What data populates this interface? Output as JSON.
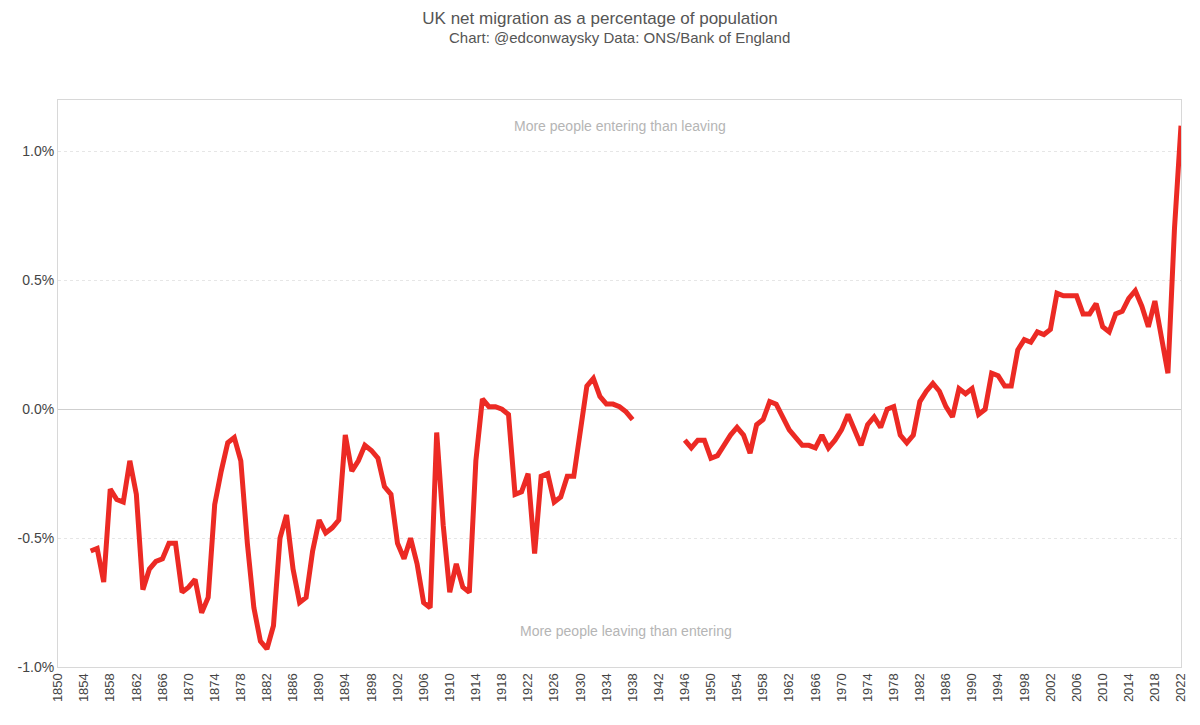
{
  "chart_data": {
    "type": "line",
    "title": "UK net migration as a percentage of population",
    "subtitle": "Chart: @edconwaysky Data: ONS/Bank of England",
    "color": "#ec2a24",
    "grid": true,
    "annotations": [
      {
        "text": "More people entering than leaving",
        "x": 1936,
        "y": 1.1
      },
      {
        "text": "More people leaving than entering",
        "x": 1937,
        "y": -0.86
      }
    ],
    "xlim": [
      1850,
      2022
    ],
    "xticks": [
      1850,
      1854,
      1858,
      1862,
      1866,
      1870,
      1874,
      1878,
      1882,
      1886,
      1890,
      1894,
      1898,
      1902,
      1906,
      1910,
      1914,
      1918,
      1922,
      1926,
      1930,
      1934,
      1938,
      1942,
      1946,
      1950,
      1954,
      1958,
      1962,
      1966,
      1970,
      1974,
      1978,
      1982,
      1986,
      1990,
      1994,
      1998,
      2002,
      2006,
      2010,
      2014,
      2018,
      2022
    ],
    "ylim": [
      -1.0,
      1.2
    ],
    "yticks": [
      {
        "value": -1.0,
        "label": "-1.0%"
      },
      {
        "value": -0.5,
        "label": "-0.5%"
      },
      {
        "value": 0.0,
        "label": "0.0%"
      },
      {
        "value": 0.5,
        "label": "0.5%"
      },
      {
        "value": 1.0,
        "label": "1.0%"
      }
    ],
    "x": [
      1855,
      1856,
      1857,
      1858,
      1859,
      1860,
      1861,
      1862,
      1863,
      1864,
      1865,
      1866,
      1867,
      1868,
      1869,
      1870,
      1871,
      1872,
      1873,
      1874,
      1875,
      1876,
      1877,
      1878,
      1879,
      1880,
      1881,
      1882,
      1883,
      1884,
      1885,
      1886,
      1887,
      1888,
      1889,
      1890,
      1891,
      1892,
      1893,
      1894,
      1895,
      1896,
      1897,
      1898,
      1899,
      1900,
      1901,
      1902,
      1903,
      1904,
      1905,
      1906,
      1907,
      1908,
      1909,
      1910,
      1911,
      1912,
      1913,
      1914,
      1915,
      1916,
      1917,
      1918,
      1919,
      1920,
      1921,
      1922,
      1923,
      1924,
      1925,
      1926,
      1927,
      1928,
      1929,
      1930,
      1931,
      1932,
      1933,
      1934,
      1935,
      1936,
      1937,
      1938,
      1939,
      1940,
      1941,
      1942,
      1943,
      1944,
      1945,
      1946,
      1947,
      1948,
      1949,
      1950,
      1951,
      1952,
      1953,
      1954,
      1955,
      1956,
      1957,
      1958,
      1959,
      1960,
      1961,
      1962,
      1963,
      1964,
      1965,
      1966,
      1967,
      1968,
      1969,
      1970,
      1971,
      1972,
      1973,
      1974,
      1975,
      1976,
      1977,
      1978,
      1979,
      1980,
      1981,
      1982,
      1983,
      1984,
      1985,
      1986,
      1987,
      1988,
      1989,
      1990,
      1991,
      1992,
      1993,
      1994,
      1995,
      1996,
      1997,
      1998,
      1999,
      2000,
      2001,
      2002,
      2003,
      2004,
      2005,
      2006,
      2007,
      2008,
      2009,
      2010,
      2011,
      2012,
      2013,
      2014,
      2015,
      2016,
      2017,
      2018,
      2019,
      2020,
      2021,
      2022
    ],
    "values": [
      -0.55,
      -0.54,
      -0.67,
      -0.31,
      -0.35,
      -0.36,
      -0.2,
      -0.33,
      -0.7,
      -0.62,
      -0.59,
      -0.58,
      -0.52,
      -0.52,
      -0.71,
      -0.69,
      -0.66,
      -0.79,
      -0.73,
      -0.37,
      -0.24,
      -0.13,
      -0.11,
      -0.2,
      -0.52,
      -0.77,
      -0.9,
      -0.93,
      -0.84,
      -0.5,
      -0.41,
      -0.62,
      -0.75,
      -0.73,
      -0.55,
      -0.43,
      -0.48,
      -0.46,
      -0.43,
      -0.1,
      -0.24,
      -0.2,
      -0.14,
      -0.16,
      -0.19,
      -0.3,
      -0.33,
      -0.52,
      -0.58,
      -0.5,
      -0.6,
      -0.75,
      -0.77,
      -0.09,
      -0.45,
      -0.71,
      -0.6,
      -0.69,
      -0.71,
      -0.2,
      0.04,
      0.01,
      0.01,
      0.0,
      -0.02,
      -0.33,
      -0.32,
      -0.25,
      -0.56,
      -0.26,
      -0.25,
      -0.36,
      -0.34,
      -0.26,
      -0.26,
      -0.1,
      0.09,
      0.12,
      0.05,
      0.02,
      0.02,
      0.01,
      -0.01,
      -0.04,
      null,
      null,
      null,
      null,
      null,
      null,
      null,
      -0.12,
      -0.15,
      -0.12,
      -0.12,
      -0.19,
      -0.18,
      -0.14,
      -0.1,
      -0.07,
      -0.1,
      -0.17,
      -0.06,
      -0.04,
      0.03,
      0.02,
      -0.03,
      -0.08,
      -0.11,
      -0.14,
      -0.14,
      -0.15,
      -0.1,
      -0.15,
      -0.12,
      -0.08,
      -0.02,
      -0.08,
      -0.14,
      -0.06,
      -0.03,
      -0.07,
      0.0,
      0.01,
      -0.1,
      -0.13,
      -0.1,
      0.03,
      0.07,
      0.1,
      0.07,
      0.01,
      -0.03,
      0.08,
      0.06,
      0.08,
      -0.02,
      0.0,
      0.14,
      0.13,
      0.09,
      0.09,
      0.23,
      0.27,
      0.26,
      0.3,
      0.29,
      0.31,
      0.45,
      0.44,
      0.44,
      0.44,
      0.37,
      0.37,
      0.41,
      0.32,
      0.3,
      0.37,
      0.38,
      0.43,
      0.46,
      0.4,
      0.32,
      0.42,
      0.28,
      0.14,
      0.7,
      1.1
    ]
  }
}
